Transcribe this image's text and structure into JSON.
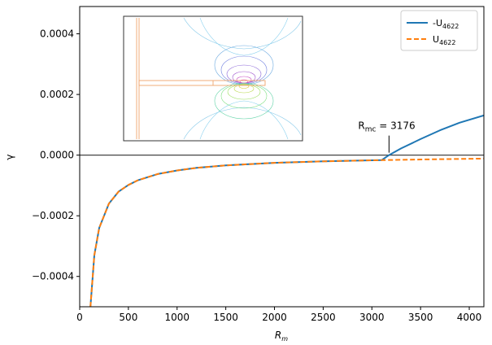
{
  "chart_data": {
    "type": "line",
    "xlabel": "R",
    "xlabel_sub": "m",
    "ylabel": "γ",
    "xlim": [
      0,
      4150
    ],
    "ylim": [
      -0.0005,
      0.00049
    ],
    "x_ticks": [
      0,
      500,
      1000,
      1500,
      2000,
      2500,
      3000,
      3500,
      4000
    ],
    "x_tick_labels": [
      "0",
      "500",
      "1000",
      "1500",
      "2000",
      "2500",
      "3000",
      "3500",
      "4000"
    ],
    "y_ticks": [
      -0.0004,
      -0.0002,
      0.0,
      0.0002,
      0.0004
    ],
    "y_tick_labels": [
      "−0.0004",
      "−0.0002",
      "0.0000",
      "0.0002",
      "0.0004"
    ],
    "grid": false,
    "zero_line": true,
    "legend_placement": "top-right",
    "series": [
      {
        "name": "-U",
        "name_sub": "4622",
        "color": "#1f77b4",
        "style": "solid",
        "x": [
          110,
          150,
          200,
          300,
          400,
          500,
          600,
          800,
          1000,
          1200,
          1500,
          2000,
          2500,
          3000,
          3100,
          3176,
          3300,
          3500,
          3700,
          3900,
          4150
        ],
        "y": [
          -0.0005,
          -0.00033,
          -0.00024,
          -0.00016,
          -0.00012,
          -9.85e-05,
          -8.25e-05,
          -6.25e-05,
          -5.05e-05,
          -4.2e-05,
          -3.4e-05,
          -2.55e-05,
          -2.05e-05,
          -1.72e-05,
          -1.65e-05,
          0.0,
          2.2e-05,
          5.3e-05,
          8.2e-05,
          0.000107,
          0.000131
        ]
      },
      {
        "name": "U",
        "name_sub": "4622",
        "color": "#ff7f0e",
        "style": "dashed",
        "x": [
          110,
          150,
          200,
          300,
          400,
          500,
          600,
          800,
          1000,
          1200,
          1500,
          2000,
          2500,
          3000,
          3100,
          3500,
          4150
        ],
        "y": [
          -0.0005,
          -0.00033,
          -0.00024,
          -0.00016,
          -0.00012,
          -9.85e-05,
          -8.25e-05,
          -6.25e-05,
          -5.05e-05,
          -4.2e-05,
          -3.4e-05,
          -2.55e-05,
          -2.05e-05,
          -1.72e-05,
          -1.65e-05,
          -1.45e-05,
          -1.15e-05
        ]
      }
    ],
    "annotations": [
      {
        "text": "R",
        "text_sub": "mc",
        "text_rest": " = 3176",
        "x": 3176,
        "y": 0.0
      }
    ],
    "inset": {
      "description_colors": [
        "#ff7f0e",
        "#1f77b4",
        "#2ca02c",
        "#9467bd",
        "#e377c2"
      ]
    }
  }
}
